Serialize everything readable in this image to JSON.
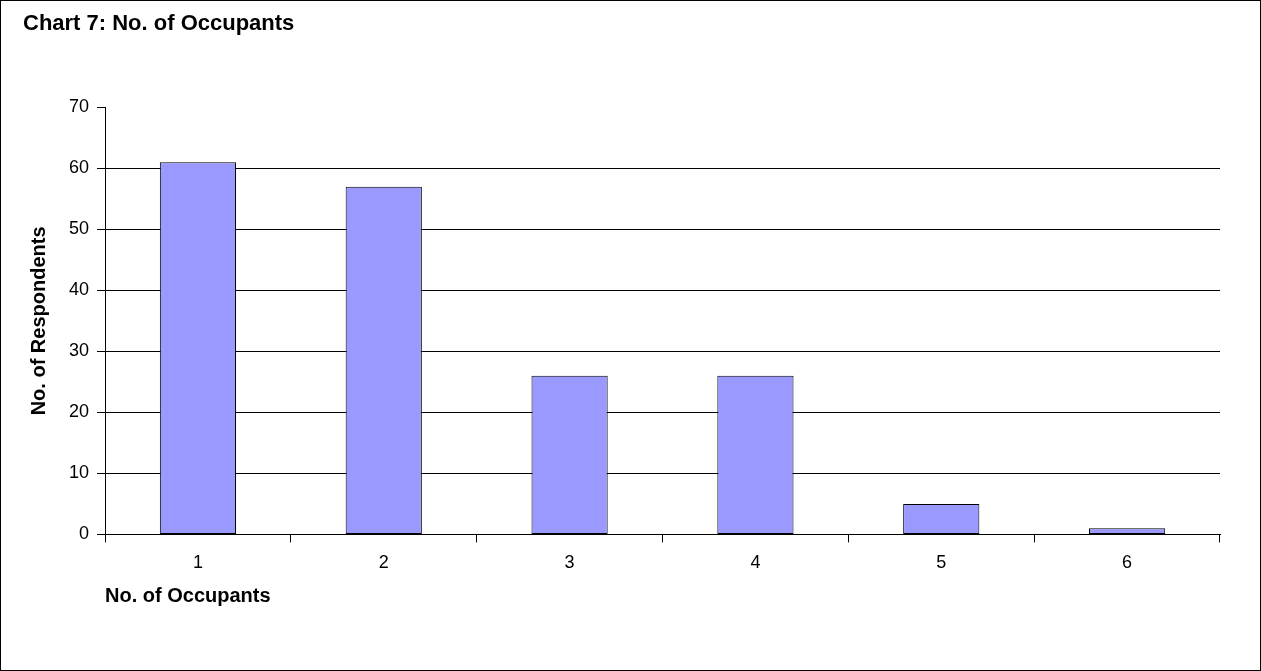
{
  "chart_data": {
    "type": "bar",
    "title": "Chart 7: No. of Occupants",
    "xlabel": "No. of Occupants",
    "ylabel": "No. of Respondents",
    "categories": [
      "1",
      "2",
      "3",
      "4",
      "5",
      "6"
    ],
    "values": [
      61,
      57,
      26,
      26,
      5,
      1
    ],
    "color": "#9999ff",
    "ylim": [
      0,
      70
    ],
    "yticks": [
      0,
      10,
      20,
      30,
      40,
      50,
      60,
      70
    ],
    "grid": "y",
    "legend": false
  }
}
